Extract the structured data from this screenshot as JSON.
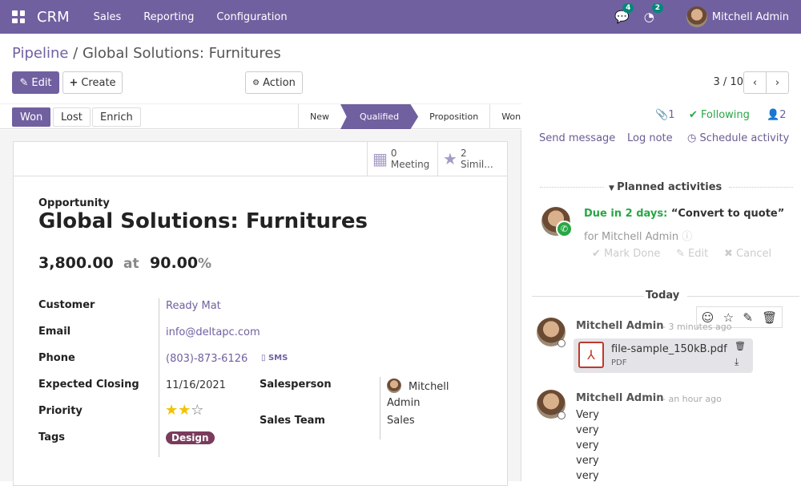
{
  "nav": {
    "brand": "CRM",
    "menus": [
      "Sales",
      "Reporting",
      "Configuration"
    ],
    "messages_count": "4",
    "activities_count": "2",
    "user": "Mitchell Admin",
    "color": "#7160a0"
  },
  "breadcrumb": {
    "parent": "Pipeline",
    "current": "Global Solutions: Furnitures"
  },
  "toolbar": {
    "edit": "Edit",
    "create": "Create",
    "action": "Action",
    "pager": "3 / 10"
  },
  "status": {
    "buttons": [
      "Won",
      "Lost",
      "Enrich"
    ],
    "stages": [
      "New",
      "Qualified",
      "Proposition",
      "Won"
    ],
    "active_stage": "Qualified"
  },
  "smart_buttons": [
    {
      "count": "0",
      "label": "Meeting",
      "icon": "calendar-icon"
    },
    {
      "count": "2",
      "label": "Simil...",
      "icon": "star-icon"
    }
  ],
  "form": {
    "type_label": "Opportunity",
    "title": "Global Solutions: Furnitures",
    "revenue": "3,800.00",
    "at": "at",
    "probability": "90.00",
    "pct": "%",
    "fields": {
      "customer_label": "Customer",
      "customer": "Ready Mat",
      "email_label": "Email",
      "email": "info@deltapc.com",
      "phone_label": "Phone",
      "phone": "(803)-873-6126",
      "sms": "SMS",
      "closing_label": "Expected Closing",
      "closing": "11/16/2021",
      "priority_label": "Priority",
      "priority": 2,
      "priority_max": 3,
      "tags_label": "Tags",
      "tag": "Design",
      "salesperson_label": "Salesperson",
      "salesperson": "Mitchell Admin",
      "team_label": "Sales Team",
      "team": "Sales"
    }
  },
  "chatter": {
    "attachments": "1",
    "following": "Following",
    "followers": "2",
    "send_message": "Send message",
    "log_note": "Log note",
    "schedule": "Schedule activity",
    "planned": "Planned activities",
    "due": "Due in 2 days:",
    "activity": "“Convert to quote”",
    "for": "for Mitchell Admin",
    "mark_done": "Mark Done",
    "edit": "Edit",
    "cancel": "Cancel",
    "today": "Today",
    "messages": [
      {
        "author": "Mitchell Admin",
        "time": "- 3 minutes ago",
        "file": "file-sample_150kB.pdf",
        "file_type": "PDF"
      },
      {
        "author": "Mitchell Admin",
        "time": "- an hour ago",
        "lines": [
          "Very",
          "very",
          "very",
          "very",
          "very"
        ]
      }
    ]
  }
}
